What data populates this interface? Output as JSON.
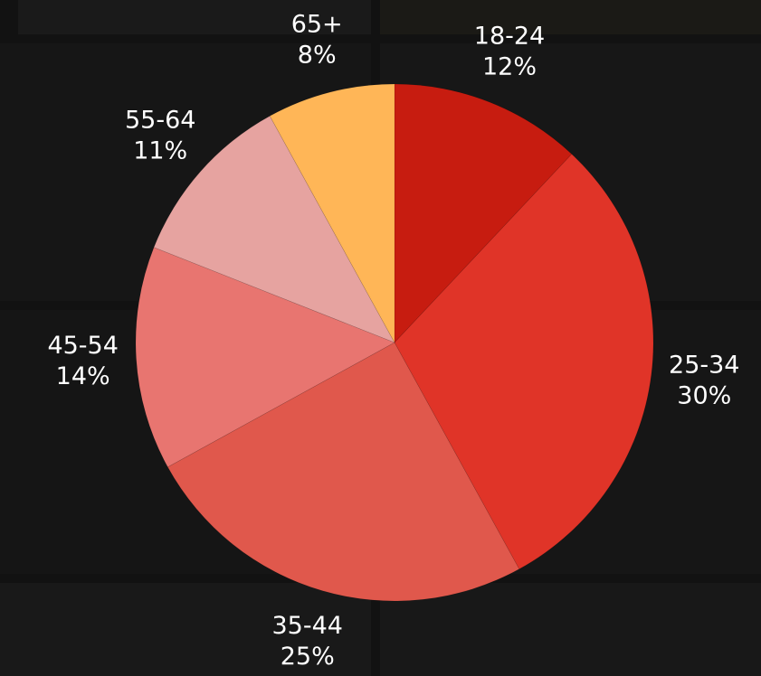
{
  "chart_data": {
    "type": "pie",
    "categories": [
      "18-24",
      "25-34",
      "35-44",
      "45-54",
      "55-64",
      "65+"
    ],
    "values": [
      12,
      30,
      25,
      14,
      11,
      8
    ],
    "value_labels": [
      "12%",
      "30%",
      "25%",
      "14%",
      "11%",
      "8%"
    ],
    "colors": [
      "#c71c10",
      "#e03428",
      "#e0584c",
      "#e87570",
      "#e6a3a0",
      "#ffb657"
    ]
  }
}
